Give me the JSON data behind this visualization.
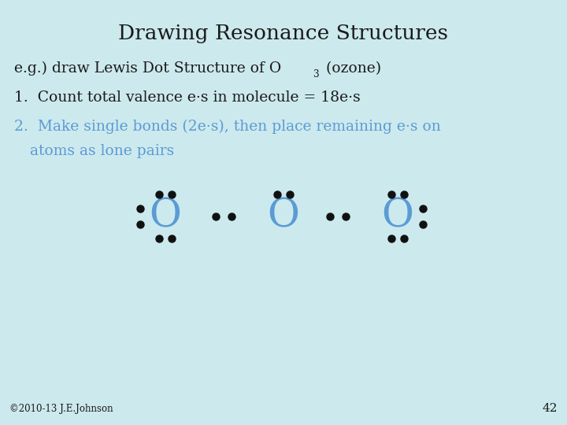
{
  "bg_color": "#cce9ed",
  "title": "Drawing Resonance Structures",
  "title_fontsize": 19,
  "title_color": "#1a1a1a",
  "text_color_black": "#1a1a1a",
  "text_color_blue": "#5b9bd5",
  "O_color": "#5b9bd5",
  "dot_color": "#111111",
  "footer_text": "©2010-13 J.E.Johnson",
  "page_number": "42",
  "O_fontsize": 36,
  "text_fontsize": 13.5
}
